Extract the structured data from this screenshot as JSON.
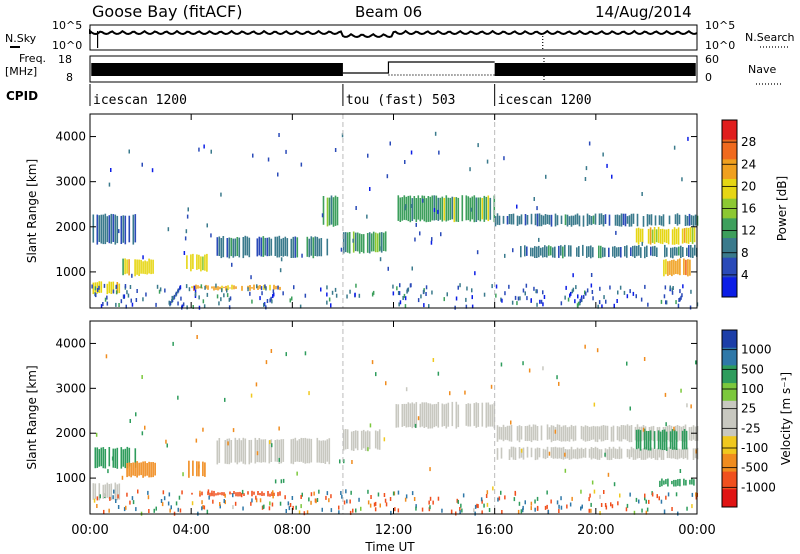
{
  "header": {
    "title": "Goose Bay (fitACF)",
    "beam": "Beam 06",
    "date": "14/Aug/2014"
  },
  "top_panels": {
    "nsky_label": "N.Sky",
    "nsky_ticks": [
      "10^5",
      "10^0"
    ],
    "nsearch_label": "N.Search",
    "nsearch_ticks": [
      "10^5",
      "10^0"
    ],
    "freq_label_line1": "Freq.",
    "freq_label_line2": "[MHz]",
    "freq_ticks": [
      "18",
      "8"
    ],
    "nave_label": "Nave",
    "nave_ticks": [
      "60",
      "0"
    ],
    "cpid_label": "CPID",
    "cpid_segments": [
      {
        "label": "icescan 1200",
        "start_hour": 0,
        "end_hour": 10
      },
      {
        "label": "tou (fast) 503",
        "start_hour": 10,
        "end_hour": 16
      },
      {
        "label": "icescan 1200",
        "start_hour": 16,
        "end_hour": 24
      }
    ]
  },
  "axes": {
    "xlabel": "Time UT",
    "xticks": [
      "00:00",
      "04:00",
      "08:00",
      "12:00",
      "16:00",
      "20:00",
      "00:00"
    ],
    "ylabel": "Slant Range [km]",
    "yticks": [
      "1000",
      "2000",
      "3000",
      "4000"
    ]
  },
  "power_colorbar": {
    "label": "Power [dB]",
    "ticks": [
      "4",
      "8",
      "12",
      "16",
      "20",
      "24",
      "28"
    ],
    "colors": [
      "#0c1ee6",
      "#2a4ab8",
      "#3a7a8c",
      "#3d9f5c",
      "#8cc832",
      "#e6d614",
      "#f0a01e",
      "#f06a1e",
      "#e01e1e"
    ]
  },
  "velocity_colorbar": {
    "label": "Velocity [m s⁻¹]",
    "ticks": [
      "1000",
      "500",
      "100",
      "25",
      "-25",
      "-100",
      "-500",
      "-1000"
    ],
    "colors": [
      "#1c3ea8",
      "#2f78a8",
      "#2e9c5c",
      "#7cc83c",
      "#c8c8c0",
      "#c8c8c0",
      "#f0c81e",
      "#f08c1e",
      "#f0501e",
      "#e01414"
    ]
  },
  "chart_data": [
    {
      "type": "heatmap",
      "title": "Power [dB]",
      "xlabel": "Time UT",
      "ylabel": "Slant Range [km]",
      "xlim": [
        0,
        24
      ],
      "ylim": [
        200,
        4500
      ],
      "regions": [
        {
          "t0": 0.1,
          "t1": 1.2,
          "r0": 500,
          "r1": 800,
          "level": 20
        },
        {
          "t0": 0.1,
          "t1": 1.8,
          "r0": 1600,
          "r1": 2300,
          "level": 8
        },
        {
          "t0": 1.2,
          "t1": 2.6,
          "r0": 900,
          "r1": 1300,
          "level": 18
        },
        {
          "t0": 3.8,
          "t1": 4.6,
          "r0": 1000,
          "r1": 1400,
          "level": 20
        },
        {
          "t0": 4.0,
          "t1": 7.5,
          "r0": 580,
          "r1": 720,
          "level": 22
        },
        {
          "t0": 5.0,
          "t1": 9.5,
          "r0": 1300,
          "r1": 1800,
          "level": 8
        },
        {
          "t0": 9.2,
          "t1": 9.8,
          "r0": 2000,
          "r1": 2700,
          "level": 12
        },
        {
          "t0": 10.0,
          "t1": 11.8,
          "r0": 1400,
          "r1": 1900,
          "level": 12
        },
        {
          "t0": 12.0,
          "t1": 16.0,
          "r0": 2100,
          "r1": 2700,
          "level": 14
        },
        {
          "t0": 16.0,
          "t1": 24.0,
          "r0": 2000,
          "r1": 2300,
          "level": 10
        },
        {
          "t0": 17.0,
          "t1": 24.0,
          "r0": 1300,
          "r1": 1600,
          "level": 10
        },
        {
          "t0": 21.5,
          "t1": 23.9,
          "r0": 1600,
          "r1": 2000,
          "level": 20
        },
        {
          "t0": 22.5,
          "t1": 23.9,
          "r0": 900,
          "r1": 1300,
          "level": 24
        }
      ]
    },
    {
      "type": "heatmap",
      "title": "Velocity [m s⁻¹]",
      "xlabel": "Time UT",
      "ylabel": "Slant Range [km]",
      "xlim": [
        0,
        24
      ],
      "ylim": [
        200,
        4500
      ],
      "regions": [
        {
          "t0": 0.1,
          "t1": 1.2,
          "r0": 500,
          "r1": 900,
          "level": 0
        },
        {
          "t0": 0.1,
          "t1": 1.8,
          "r0": 1200,
          "r1": 1700,
          "level": 100
        },
        {
          "t0": 1.2,
          "t1": 2.6,
          "r0": 1000,
          "r1": 1400,
          "level": -100
        },
        {
          "t0": 3.8,
          "t1": 4.6,
          "r0": 1000,
          "r1": 1400,
          "level": -100
        },
        {
          "t0": 4.0,
          "t1": 7.5,
          "r0": 580,
          "r1": 720,
          "level": -300
        },
        {
          "t0": 5.0,
          "t1": 9.5,
          "r0": 1300,
          "r1": 1900,
          "level": 0
        },
        {
          "t0": 10.0,
          "t1": 11.8,
          "r0": 1600,
          "r1": 2100,
          "level": 0
        },
        {
          "t0": 12.0,
          "t1": 16.0,
          "r0": 2100,
          "r1": 2700,
          "level": 0
        },
        {
          "t0": 16.0,
          "t1": 24.0,
          "r0": 1800,
          "r1": 2200,
          "level": 0
        },
        {
          "t0": 16.0,
          "t1": 24.0,
          "r0": 1400,
          "r1": 1700,
          "level": 0
        },
        {
          "t0": 21.5,
          "t1": 23.6,
          "r0": 1600,
          "r1": 2100,
          "level": 200
        },
        {
          "t0": 22.5,
          "t1": 23.9,
          "r0": 800,
          "r1": 1000,
          "level": 200
        }
      ]
    }
  ]
}
